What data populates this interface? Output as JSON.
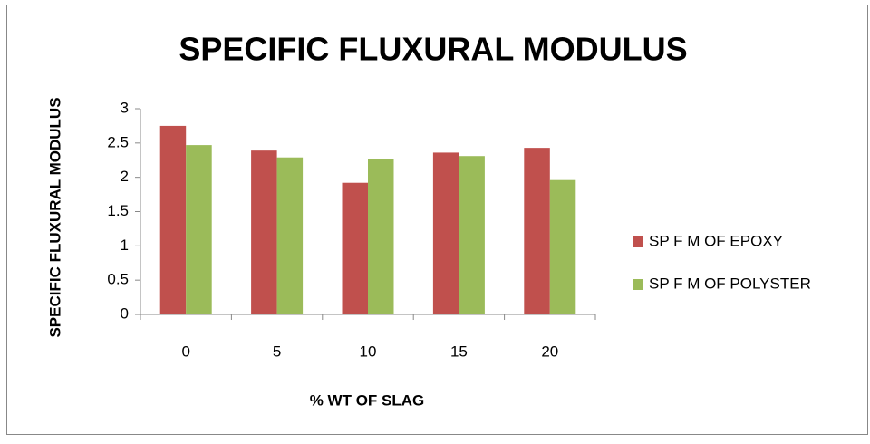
{
  "chart_data": {
    "type": "bar",
    "title": "SPECIFIC FLUXURAL MODULUS",
    "x_label": "% WT OF SLAG",
    "y_label": "SPECIFIC FLUXURAL MODULUS",
    "categories": [
      "0",
      "5",
      "10",
      "15",
      "20"
    ],
    "series": [
      {
        "name": "SP F M OF EPOXY",
        "color": "#c0504d",
        "values": [
          2.75,
          2.39,
          1.92,
          2.36,
          2.43
        ]
      },
      {
        "name": "SP F M OF POLYSTER",
        "color": "#9bbb59",
        "values": [
          2.47,
          2.29,
          2.26,
          2.31,
          1.96
        ]
      }
    ],
    "ylim": [
      0,
      3
    ],
    "yticks": [
      0,
      0.5,
      1,
      1.5,
      2,
      2.5,
      3
    ],
    "legend": "right"
  }
}
